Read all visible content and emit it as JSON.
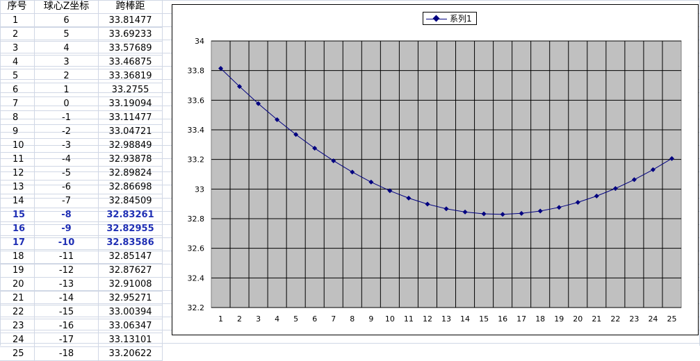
{
  "sheet": {
    "headers": [
      "序号",
      "球心Z坐标",
      "跨棒距"
    ],
    "rows": [
      {
        "idx": "1",
        "z": "6",
        "span": "33.81477"
      },
      {
        "idx": "2",
        "z": "5",
        "span": "33.69233"
      },
      {
        "idx": "3",
        "z": "4",
        "span": "33.57689"
      },
      {
        "idx": "4",
        "z": "3",
        "span": "33.46875"
      },
      {
        "idx": "5",
        "z": "2",
        "span": "33.36819"
      },
      {
        "idx": "6",
        "z": "1",
        "span": "33.2755"
      },
      {
        "idx": "7",
        "z": "0",
        "span": "33.19094"
      },
      {
        "idx": "8",
        "z": "-1",
        "span": "33.11477"
      },
      {
        "idx": "9",
        "z": "-2",
        "span": "33.04721"
      },
      {
        "idx": "10",
        "z": "-3",
        "span": "32.98849"
      },
      {
        "idx": "11",
        "z": "-4",
        "span": "32.93878"
      },
      {
        "idx": "12",
        "z": "-5",
        "span": "32.89824"
      },
      {
        "idx": "13",
        "z": "-6",
        "span": "32.86698"
      },
      {
        "idx": "14",
        "z": "-7",
        "span": "32.84509"
      },
      {
        "idx": "15",
        "z": "-8",
        "span": "32.83261",
        "highlight": true
      },
      {
        "idx": "16",
        "z": "-9",
        "span": "32.82955",
        "highlight": true
      },
      {
        "idx": "17",
        "z": "-10",
        "span": "32.83586",
        "highlight": true
      },
      {
        "idx": "18",
        "z": "-11",
        "span": "32.85147"
      },
      {
        "idx": "19",
        "z": "-12",
        "span": "32.87627"
      },
      {
        "idx": "20",
        "z": "-13",
        "span": "32.91008"
      },
      {
        "idx": "21",
        "z": "-14",
        "span": "32.95271"
      },
      {
        "idx": "22",
        "z": "-15",
        "span": "33.00394"
      },
      {
        "idx": "23",
        "z": "-16",
        "span": "33.06347"
      },
      {
        "idx": "24",
        "z": "-17",
        "span": "33.13101"
      },
      {
        "idx": "25",
        "z": "-18",
        "span": "33.20622"
      }
    ],
    "highlight_color": "#1f2fb4"
  },
  "chart_data": {
    "type": "line",
    "categories": [
      "1",
      "2",
      "3",
      "4",
      "5",
      "6",
      "7",
      "8",
      "9",
      "10",
      "11",
      "12",
      "13",
      "14",
      "15",
      "16",
      "17",
      "18",
      "19",
      "20",
      "21",
      "22",
      "23",
      "24",
      "25"
    ],
    "series": [
      {
        "name": "系列1",
        "color": "#000080",
        "marker": "diamond",
        "values": [
          33.81477,
          33.69233,
          33.57689,
          33.46875,
          33.36819,
          33.2755,
          33.19094,
          33.11477,
          33.04721,
          32.98849,
          32.93878,
          32.89824,
          32.86698,
          32.84509,
          32.83261,
          32.82955,
          32.83586,
          32.85147,
          32.87627,
          32.91008,
          32.95271,
          33.00394,
          33.06347,
          33.13101,
          33.20622
        ]
      }
    ],
    "ylim": [
      32.2,
      34
    ],
    "yticks": [
      "32.2",
      "32.4",
      "32.6",
      "32.8",
      "33",
      "33.2",
      "33.4",
      "33.6",
      "33.8",
      "34"
    ],
    "grid": true,
    "plot_background": "#c0c0c0",
    "legend": "top-center",
    "title": "",
    "xlabel": "",
    "ylabel": ""
  }
}
